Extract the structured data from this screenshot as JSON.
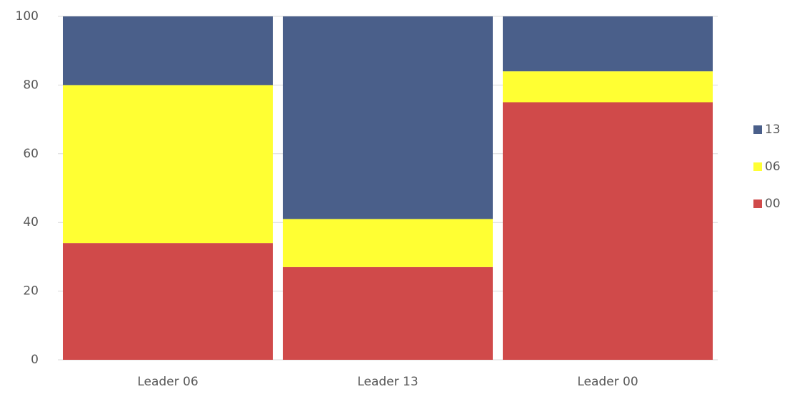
{
  "chart_data": {
    "type": "stacked_bar",
    "categories": [
      "Leader 06",
      "Leader 13",
      "Leader 00"
    ],
    "series": [
      {
        "name": "00",
        "color": "#d04a4a",
        "values": [
          34,
          27,
          75
        ]
      },
      {
        "name": "06",
        "color": "#ffff33",
        "values": [
          46,
          14,
          9
        ]
      },
      {
        "name": "13",
        "color": "#4a5f8a",
        "values": [
          20,
          59,
          16
        ]
      }
    ],
    "ylim": [
      0,
      100
    ],
    "yticks": [
      0,
      20,
      40,
      60,
      80,
      100
    ],
    "grid": true,
    "legend": "right"
  }
}
